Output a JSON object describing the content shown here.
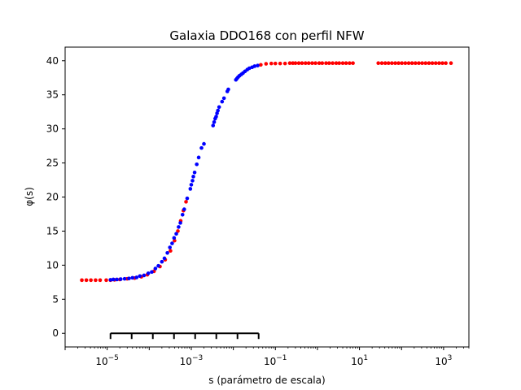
{
  "chart_data": {
    "type": "scatter",
    "title": "Galaxia DDO168 con perfil NFW",
    "xlabel": "s (parámetro de escala)",
    "ylabel": "φ(s)",
    "xscale": "log",
    "xlim": [
      1e-06,
      4000
    ],
    "ylim": [
      -2,
      42
    ],
    "yticks": [
      0,
      5,
      10,
      15,
      20,
      25,
      30,
      35,
      40
    ],
    "xtick_labels": [
      {
        "value": 1e-05,
        "base": "10",
        "exp": "−5"
      },
      {
        "value": 0.001,
        "base": "10",
        "exp": "−3"
      },
      {
        "value": 0.1,
        "base": "10",
        "exp": "−1"
      },
      {
        "value": 10,
        "base": "10",
        "exp": "1"
      },
      {
        "value": 1000,
        "base": "10",
        "exp": "3"
      }
    ],
    "grid": false,
    "colors": {
      "red_series": "#ff0000",
      "blue_series": "#0000ff",
      "axes": "#000000"
    },
    "series": [
      {
        "color": "#ff0000",
        "points": [
          [
            2.5e-06,
            7.8
          ],
          [
            3.2e-06,
            7.8
          ],
          [
            4.1e-06,
            7.8
          ],
          [
            5.3e-06,
            7.8
          ],
          [
            6.8e-06,
            7.8
          ],
          [
            9.5e-06,
            7.8
          ],
          [
            1.2e-05,
            7.8
          ],
          [
            1.5e-05,
            7.85
          ],
          [
            2e-05,
            7.9
          ],
          [
            3e-05,
            8.0
          ],
          [
            4.5e-05,
            8.1
          ],
          [
            6.5e-05,
            8.3
          ],
          [
            9e-05,
            8.6
          ],
          [
            0.00013,
            9.1
          ],
          [
            0.00018,
            9.8
          ],
          [
            0.00024,
            10.8
          ],
          [
            0.00032,
            12.1
          ],
          [
            0.0004,
            13.6
          ],
          [
            0.00048,
            15.0
          ],
          [
            0.00056,
            16.5
          ],
          [
            0.00065,
            18.0
          ],
          [
            0.00075,
            19.3
          ],
          [
            0.045,
            39.4
          ],
          [
            0.06,
            39.55
          ],
          [
            0.08,
            39.6
          ],
          [
            0.1,
            39.6
          ],
          [
            0.13,
            39.6
          ],
          [
            0.17,
            39.6
          ],
          [
            0.22,
            39.65
          ],
          [
            0.26,
            39.65
          ],
          [
            0.3,
            39.65
          ],
          [
            0.36,
            39.65
          ],
          [
            0.43,
            39.65
          ],
          [
            0.52,
            39.65
          ],
          [
            0.62,
            39.65
          ],
          [
            0.75,
            39.65
          ],
          [
            0.9,
            39.65
          ],
          [
            1.1,
            39.65
          ],
          [
            1.3,
            39.65
          ],
          [
            1.6,
            39.65
          ],
          [
            1.9,
            39.65
          ],
          [
            2.3,
            39.65
          ],
          [
            2.8,
            39.65
          ],
          [
            3.3,
            39.65
          ],
          [
            4.0,
            39.65
          ],
          [
            4.8,
            39.65
          ],
          [
            5.8,
            39.65
          ],
          [
            7.0,
            39.65
          ],
          [
            28,
            39.65
          ],
          [
            34,
            39.65
          ],
          [
            41,
            39.65
          ],
          [
            49,
            39.65
          ],
          [
            59,
            39.65
          ],
          [
            71,
            39.65
          ],
          [
            85,
            39.65
          ],
          [
            102,
            39.65
          ],
          [
            123,
            39.65
          ],
          [
            148,
            39.65
          ],
          [
            178,
            39.65
          ],
          [
            214,
            39.65
          ],
          [
            258,
            39.65
          ],
          [
            310,
            39.65
          ],
          [
            373,
            39.65
          ],
          [
            449,
            39.65
          ],
          [
            540,
            39.65
          ],
          [
            650,
            39.65
          ],
          [
            782,
            39.65
          ],
          [
            940,
            39.65
          ],
          [
            1130,
            39.65
          ],
          [
            1500,
            39.65
          ]
        ]
      },
      {
        "color": "#0000ff",
        "points": [
          [
            1.2e-05,
            7.85
          ],
          [
            1.4e-05,
            7.9
          ],
          [
            1.7e-05,
            7.9
          ],
          [
            2.1e-05,
            7.95
          ],
          [
            2.6e-05,
            8.0
          ],
          [
            3.3e-05,
            8.05
          ],
          [
            4e-05,
            8.15
          ],
          [
            5e-05,
            8.2
          ],
          [
            6e-05,
            8.4
          ],
          [
            7.5e-05,
            8.5
          ],
          [
            9.5e-05,
            8.8
          ],
          [
            0.000115,
            9.0
          ],
          [
            0.00014,
            9.5
          ],
          [
            0.000165,
            9.9
          ],
          [
            0.0002,
            10.5
          ],
          [
            0.00023,
            11.0
          ],
          [
            0.00027,
            11.8
          ],
          [
            0.00031,
            12.6
          ],
          [
            0.00035,
            13.2
          ],
          [
            0.00039,
            14.0
          ],
          [
            0.00044,
            14.6
          ],
          [
            0.0005,
            15.6
          ],
          [
            0.00055,
            16.2
          ],
          [
            0.00062,
            17.4
          ],
          [
            0.00068,
            18.2
          ],
          [
            0.0008,
            19.8
          ],
          [
            0.00095,
            21.2
          ],
          [
            0.001,
            21.8
          ],
          [
            0.00107,
            22.4
          ],
          [
            0.00112,
            23.0
          ],
          [
            0.0012,
            23.6
          ],
          [
            0.00135,
            24.8
          ],
          [
            0.0015,
            25.8
          ],
          [
            0.00175,
            27.2
          ],
          [
            0.002,
            27.8
          ],
          [
            0.0033,
            30.5
          ],
          [
            0.0035,
            31.0
          ],
          [
            0.0037,
            31.5
          ],
          [
            0.0039,
            31.8
          ],
          [
            0.0041,
            32.3
          ],
          [
            0.0043,
            32.7
          ],
          [
            0.0046,
            33.2
          ],
          [
            0.0054,
            34.0
          ],
          [
            0.006,
            34.5
          ],
          [
            0.0072,
            35.5
          ],
          [
            0.0076,
            35.8
          ],
          [
            0.0115,
            37.2
          ],
          [
            0.0122,
            37.4
          ],
          [
            0.013,
            37.6
          ],
          [
            0.014,
            37.8
          ],
          [
            0.0155,
            38.0
          ],
          [
            0.017,
            38.2
          ],
          [
            0.019,
            38.45
          ],
          [
            0.0215,
            38.7
          ],
          [
            0.024,
            38.9
          ],
          [
            0.028,
            39.05
          ],
          [
            0.032,
            39.2
          ],
          [
            0.038,
            39.3
          ]
        ]
      }
    ],
    "bracket": {
      "y": 0,
      "x_start": 1.2e-05,
      "x_end": 0.04,
      "ticks": 8
    }
  }
}
